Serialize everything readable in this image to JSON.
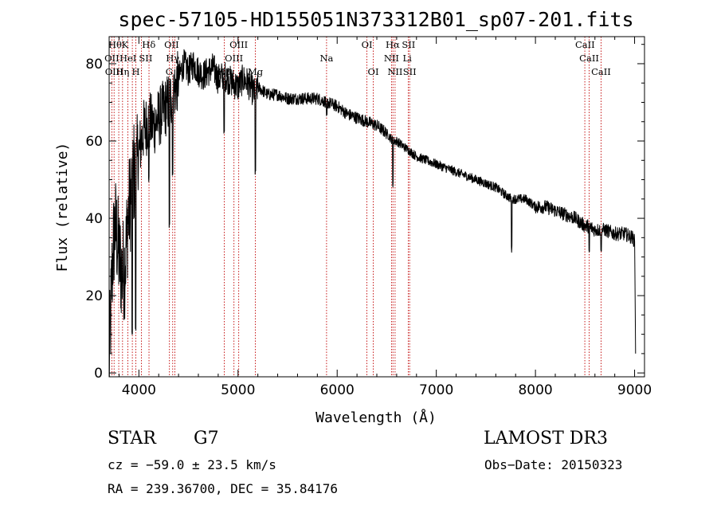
{
  "chart_data": {
    "type": "line",
    "title": "spec-57105-HD155051N373312B01_sp07-201.fits",
    "xlabel": "Wavelength (Å)",
    "ylabel": "Flux (relative)",
    "xlim": [
      3700,
      9100
    ],
    "ylim": [
      -1,
      87
    ],
    "xticks": [
      4000,
      5000,
      6000,
      7000,
      8000,
      9000
    ],
    "yticks": [
      0,
      20,
      40,
      60,
      80
    ],
    "grid": false,
    "series": [
      {
        "name": "spectrum",
        "anchors": {
          "x": [
            3700,
            3712,
            3725,
            3740,
            3760,
            3780,
            3800,
            3830,
            3860,
            3890,
            3920,
            3950,
            3970,
            4000,
            4050,
            4100,
            4150,
            4200,
            4250,
            4300,
            4340,
            4400,
            4450,
            4500,
            4550,
            4600,
            4650,
            4700,
            4750,
            4800,
            4861,
            4900,
            4950,
            5000,
            5050,
            5100,
            5175,
            5200,
            5300,
            5400,
            5500,
            5600,
            5700,
            5800,
            5900,
            6000,
            6100,
            6200,
            6300,
            6400,
            6500,
            6563,
            6600,
            6700,
            6800,
            6900,
            7000,
            7100,
            7200,
            7300,
            7400,
            7500,
            7600,
            7700,
            7760,
            7800,
            7900,
            8000,
            8100,
            8200,
            8300,
            8400,
            8500,
            8542,
            8600,
            8662,
            8700,
            8800,
            8900,
            8980,
            9000,
            9005,
            9010
          ],
          "y": [
            0,
            12,
            22,
            32,
            38,
            35,
            30,
            26,
            28,
            40,
            46,
            52,
            50,
            57,
            63,
            65,
            64,
            66,
            68,
            70,
            72,
            76,
            80,
            78,
            80,
            78,
            77,
            78,
            79,
            76,
            77,
            76,
            75,
            74,
            76,
            75,
            72,
            74,
            72,
            72,
            71,
            71,
            71,
            71,
            70,
            69,
            67,
            66,
            65,
            64,
            62,
            60,
            60,
            58,
            56,
            55,
            54,
            53,
            52,
            51,
            50,
            49,
            48,
            46,
            45,
            45,
            45,
            43,
            43,
            42,
            41,
            40,
            38,
            38,
            37,
            37,
            37,
            36,
            36,
            35,
            34,
            20,
            5
          ]
        },
        "noise_segments": [
          {
            "x0": 3700,
            "x1": 3990,
            "amplitude": 14
          },
          {
            "x0": 3990,
            "x1": 4400,
            "amplitude": 8
          },
          {
            "x0": 4400,
            "x1": 5200,
            "amplitude": 4
          },
          {
            "x0": 5200,
            "x1": 6500,
            "amplitude": 1.6
          },
          {
            "x0": 6500,
            "x1": 8000,
            "amplitude": 1.2
          },
          {
            "x0": 8000,
            "x1": 9000,
            "amplitude": 1.8
          }
        ],
        "dips": [
          {
            "x": 3933,
            "y": 10
          },
          {
            "x": 3968,
            "y": 12
          },
          {
            "x": 4101,
            "y": 50
          },
          {
            "x": 4308,
            "y": 38
          },
          {
            "x": 4340,
            "y": 52
          },
          {
            "x": 4861,
            "y": 62
          },
          {
            "x": 5175,
            "y": 52
          },
          {
            "x": 5895,
            "y": 66
          },
          {
            "x": 6563,
            "y": 49
          },
          {
            "x": 7760,
            "y": 32
          },
          {
            "x": 8542,
            "y": 31
          },
          {
            "x": 8662,
            "y": 31
          }
        ]
      }
    ],
    "annotations": {
      "lines": [
        3727,
        3750,
        3797,
        3835,
        3889,
        3934,
        3969,
        4026,
        4102,
        4308,
        4341,
        4363,
        4861,
        4959,
        5007,
        5175,
        5893,
        6300,
        6364,
        6548,
        6563,
        6584,
        6717,
        6731,
        8498,
        8542,
        8662
      ],
      "labels": [
        {
          "text": "Hθ",
          "x": 3760,
          "row": 1
        },
        {
          "text": "K",
          "x": 3860,
          "row": 1
        },
        {
          "text": "Hδ",
          "x": 4100,
          "row": 1
        },
        {
          "text": "OII",
          "x": 4330,
          "row": 1
        },
        {
          "text": "OIII",
          "x": 5007,
          "row": 1
        },
        {
          "text": "OI",
          "x": 6300,
          "row": 1
        },
        {
          "text": "Hα",
          "x": 6560,
          "row": 1
        },
        {
          "text": "SII",
          "x": 6720,
          "row": 1
        },
        {
          "text": "CaII",
          "x": 8500,
          "row": 1
        },
        {
          "text": "OII",
          "x": 3727,
          "row": 2
        },
        {
          "text": "HeI",
          "x": 3890,
          "row": 2
        },
        {
          "text": "SII",
          "x": 4069,
          "row": 2
        },
        {
          "text": "Hγ",
          "x": 4340,
          "row": 2
        },
        {
          "text": "OIII",
          "x": 4959,
          "row": 2
        },
        {
          "text": "Na",
          "x": 5893,
          "row": 2
        },
        {
          "text": "NII",
          "x": 6548,
          "row": 2
        },
        {
          "text": "Li",
          "x": 6707,
          "row": 2
        },
        {
          "text": "CaII",
          "x": 8542,
          "row": 2
        },
        {
          "text": "OIII",
          "x": 3750,
          "row": 3
        },
        {
          "text": "Hη",
          "x": 3835,
          "row": 3
        },
        {
          "text": "H",
          "x": 3969,
          "row": 3
        },
        {
          "text": "G",
          "x": 4305,
          "row": 3
        },
        {
          "text": "Hβ",
          "x": 4861,
          "row": 3
        },
        {
          "text": "Mg",
          "x": 5175,
          "row": 3
        },
        {
          "text": "OI",
          "x": 6364,
          "row": 3
        },
        {
          "text": "NII",
          "x": 6584,
          "row": 3
        },
        {
          "text": "SII",
          "x": 6731,
          "row": 3
        },
        {
          "text": "CaII",
          "x": 8662,
          "row": 3
        }
      ]
    }
  },
  "footer": {
    "object_class": "STAR",
    "subclass": "G7",
    "survey": "LAMOST DR3",
    "redshift": "cz = −59.0 ± 23.5 km/s",
    "obs_date": "Obs−Date: 20150323",
    "coords": "RA = 239.36700, DEC =  35.84176"
  },
  "colors": {
    "spectrum": "#000000",
    "annotation_line": "#c00000",
    "text": "#000000"
  }
}
